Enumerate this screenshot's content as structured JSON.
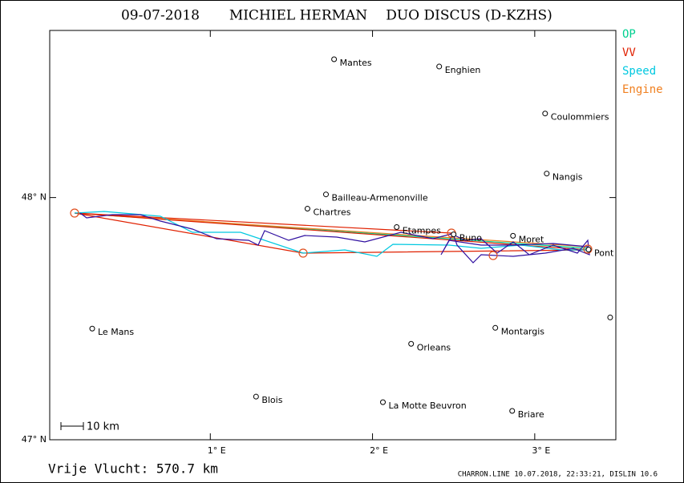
{
  "header": {
    "date": "09-07-2018",
    "pilot": "MICHIEL HERMAN",
    "glider": "DUO DISCUS (D-KZHS)"
  },
  "legend": [
    {
      "name": "OP",
      "color": "#00d090"
    },
    {
      "name": "VV",
      "color": "#e02000"
    },
    {
      "name": "Speed",
      "color": "#00c8e0"
    },
    {
      "name": "Engine",
      "color": "#f08020"
    }
  ],
  "map": {
    "xlim": [
      0.01,
      3.5
    ],
    "ylim": [
      47,
      48.69
    ],
    "xticks": [
      {
        "value": 1,
        "label": "1° E"
      },
      {
        "value": 2,
        "label": "2° E"
      },
      {
        "value": 3,
        "label": "3° E"
      }
    ],
    "yticks": [
      {
        "value": 47,
        "label": "47° N"
      },
      {
        "value": 48,
        "label": "48° N"
      }
    ],
    "cities": [
      {
        "name": "Mantes",
        "lon": 1.763,
        "lat": 48.571
      },
      {
        "name": "Enghien",
        "lon": 2.411,
        "lat": 48.541
      },
      {
        "name": "Coulommiers",
        "lon": 3.064,
        "lat": 48.347
      },
      {
        "name": "Nangis",
        "lon": 3.074,
        "lat": 48.099
      },
      {
        "name": "Bailleau-Armenonville",
        "lon": 1.713,
        "lat": 48.013
      },
      {
        "name": "Chartres",
        "lon": 1.599,
        "lat": 47.954
      },
      {
        "name": "Etampes",
        "lon": 2.149,
        "lat": 47.878
      },
      {
        "name": "Buno",
        "lon": 2.5,
        "lat": 47.848
      },
      {
        "name": "Moret",
        "lon": 2.866,
        "lat": 47.842
      },
      {
        "name": "Pont",
        "lon": 3.332,
        "lat": 47.785
      },
      {
        "name": "Le Mans",
        "lon": 0.272,
        "lat": 47.459
      },
      {
        "name": "Orleans",
        "lon": 2.238,
        "lat": 47.396
      },
      {
        "name": "Montargis",
        "lon": 2.757,
        "lat": 47.462
      },
      {
        "name": "Blois",
        "lon": 1.282,
        "lat": 47.178
      },
      {
        "name": "La Motte Beuvron",
        "lon": 2.064,
        "lat": 47.155
      },
      {
        "name": "Briare",
        "lon": 2.861,
        "lat": 47.119
      },
      {
        "name": null,
        "lon": 3.465,
        "lat": 47.505
      }
    ]
  },
  "scale": "10 km",
  "footer": {
    "distance": "Vrije Vlucht:  570.7 km",
    "credit": "CHARRON.LINE 10.07.2018, 22:33:21, DISLIN 10.6"
  }
}
